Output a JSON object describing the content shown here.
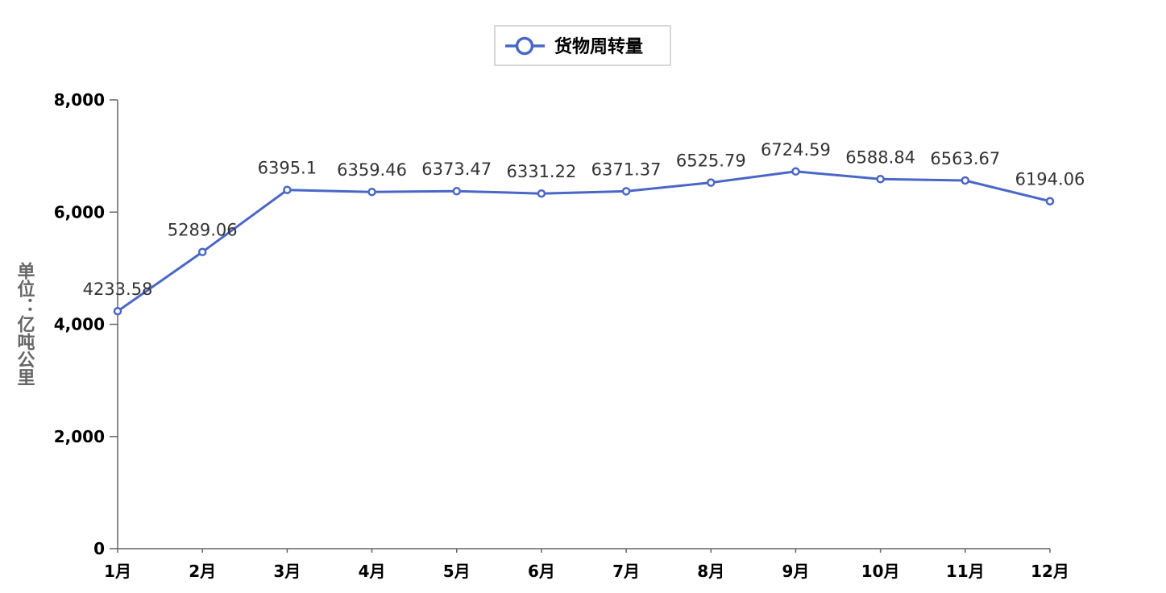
{
  "chart_data": {
    "type": "line",
    "title": "",
    "xlabel": "",
    "ylabel": "单位：亿吨公里",
    "categories": [
      "1月",
      "2月",
      "3月",
      "4月",
      "5月",
      "6月",
      "7月",
      "8月",
      "9月",
      "10月",
      "11月",
      "12月"
    ],
    "series": [
      {
        "name": "货物周转量",
        "values": [
          4233.58,
          5289.06,
          6395.1,
          6359.46,
          6373.47,
          6331.22,
          6371.37,
          6525.79,
          6724.59,
          6588.84,
          6563.67,
          6194.06
        ],
        "color": "#4a67c7"
      }
    ],
    "data_labels": [
      "4233.58",
      "5289.06",
      "6395.1",
      "6359.46",
      "6373.47",
      "6331.22",
      "6371.37",
      "6525.79",
      "6724.59",
      "6588.84",
      "6563.67",
      "6194.06"
    ],
    "ylim": [
      0,
      8000
    ],
    "yticks": [
      0,
      2000,
      4000,
      6000,
      8000
    ],
    "ytick_labels": [
      "0",
      "2,000",
      "4,000",
      "6,000",
      "8,000"
    ],
    "grid": false,
    "legend_position": "top-center",
    "axis_color": "#666666"
  }
}
